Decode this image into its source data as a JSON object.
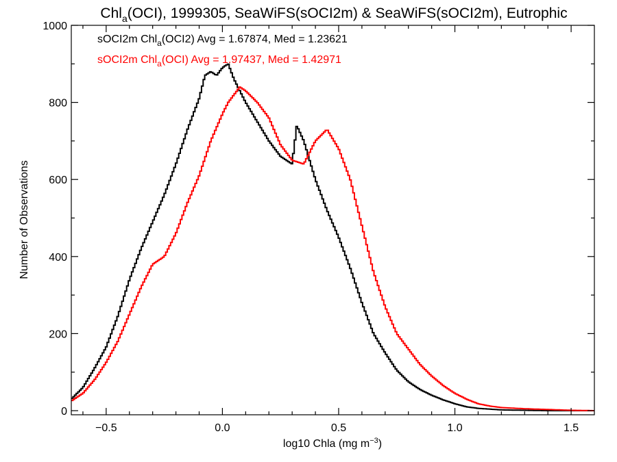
{
  "chart_data": {
    "type": "line",
    "step": true,
    "title": {
      "main": "Chl",
      "sub": "a",
      "rest": "(OCI), 1999305, SeaWiFS(sOCI2m) & SeaWiFS(sOCI2m), Eutrophic"
    },
    "xlabel": {
      "main": "log10 Chla (mg m",
      "sup": "−3",
      "end": ")"
    },
    "ylabel": "Number of Observations",
    "xlim": [
      -0.65,
      1.6
    ],
    "ylim": [
      0,
      1000
    ],
    "xticks": [
      {
        "value": -0.5,
        "label": "−0.5"
      },
      {
        "value": 0.0,
        "label": "0.0"
      },
      {
        "value": 0.5,
        "label": "0.5"
      },
      {
        "value": 1.0,
        "label": "1.0"
      },
      {
        "value": 1.5,
        "label": "1.5"
      }
    ],
    "yticks": [
      {
        "value": 0,
        "label": "0"
      },
      {
        "value": 200,
        "label": "200"
      },
      {
        "value": 400,
        "label": "400"
      },
      {
        "value": 600,
        "label": "600"
      },
      {
        "value": 800,
        "label": "800"
      },
      {
        "value": 1000,
        "label": "1000"
      }
    ],
    "legend_position": "top-left",
    "series": [
      {
        "legend": {
          "pre": "sOCI2m Chl",
          "sub": "a",
          "post": "(OCI2) Avg = 1.67874, Med = 1.23621"
        },
        "color": "#000000",
        "x": [
          -0.65,
          -0.6,
          -0.55,
          -0.5,
          -0.45,
          -0.4,
          -0.35,
          -0.3,
          -0.25,
          -0.2,
          -0.15,
          -0.1,
          -0.075,
          -0.05,
          -0.025,
          0.0,
          0.025,
          0.05,
          0.1,
          0.15,
          0.2,
          0.25,
          0.3,
          0.32,
          0.35,
          0.4,
          0.45,
          0.5,
          0.55,
          0.6,
          0.65,
          0.7,
          0.75,
          0.8,
          0.85,
          0.9,
          0.95,
          1.0,
          1.05,
          1.1,
          1.15,
          1.2,
          1.3,
          1.4,
          1.5,
          1.6
        ],
        "y": [
          30,
          60,
          110,
          165,
          245,
          340,
          420,
          490,
          560,
          640,
          730,
          810,
          870,
          880,
          870,
          890,
          900,
          860,
          800,
          750,
          700,
          660,
          640,
          740,
          700,
          600,
          520,
          450,
          370,
          280,
          200,
          150,
          105,
          75,
          55,
          40,
          28,
          18,
          10,
          6,
          4,
          2,
          1,
          0,
          0,
          0
        ]
      },
      {
        "legend": {
          "pre": "sOCI2m Chl",
          "sub": "a",
          "post": "(OCI) Avg = 1.97437, Med = 1.42971"
        },
        "color": "#ff0000",
        "x": [
          -0.65,
          -0.6,
          -0.55,
          -0.5,
          -0.45,
          -0.4,
          -0.35,
          -0.3,
          -0.25,
          -0.2,
          -0.15,
          -0.1,
          -0.05,
          0.0,
          0.025,
          0.05,
          0.075,
          0.1,
          0.15,
          0.2,
          0.25,
          0.3,
          0.35,
          0.4,
          0.45,
          0.5,
          0.55,
          0.6,
          0.65,
          0.7,
          0.75,
          0.8,
          0.85,
          0.9,
          0.95,
          1.0,
          1.05,
          1.1,
          1.15,
          1.2,
          1.3,
          1.4,
          1.5,
          1.6
        ],
        "y": [
          25,
          45,
          80,
          125,
          180,
          250,
          320,
          380,
          400,
          460,
          540,
          610,
          700,
          770,
          800,
          820,
          840,
          830,
          800,
          760,
          690,
          650,
          640,
          700,
          730,
          680,
          600,
          480,
          360,
          270,
          200,
          160,
          120,
          90,
          65,
          45,
          30,
          18,
          12,
          8,
          5,
          3,
          1,
          0
        ]
      }
    ]
  }
}
